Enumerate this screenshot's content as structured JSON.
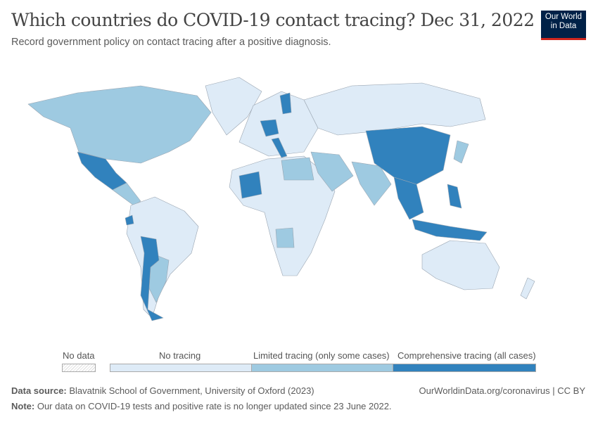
{
  "header": {
    "title": "Which countries do COVID-19 contact tracing? Dec 31, 2022",
    "subtitle": "Record government policy on contact tracing after a positive diagnosis.",
    "logo": "Our World in Data"
  },
  "legend": {
    "no_data": "No data",
    "categories": [
      {
        "label": "No tracing",
        "color": "#deebf7"
      },
      {
        "label": "Limited tracing (only some cases)",
        "color": "#9ecae1"
      },
      {
        "label": "Comprehensive tracing (all cases)",
        "color": "#3182bd"
      }
    ],
    "no_data_color": "#f2f2f2"
  },
  "footer": {
    "source_label": "Data source:",
    "source": "Blavatnik School of Government, University of Oxford (2023)",
    "url": "OurWorldinData.org/coronavirus | CC BY",
    "note_label": "Note:",
    "note": "Our data on COVID-19 tests and positive rate is no longer updated since 23 June 2022."
  }
}
